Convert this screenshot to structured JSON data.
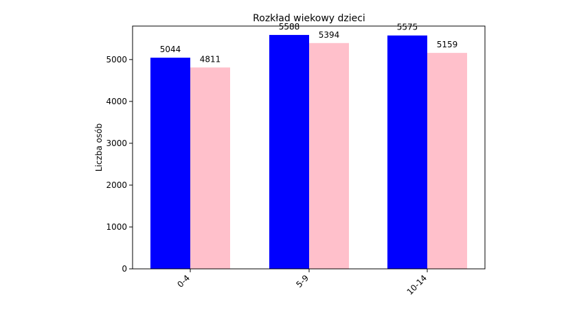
{
  "chart_data": {
    "type": "bar",
    "title": "Rozkład wiekowy dzieci",
    "xlabel": "",
    "ylabel": "Liczba osób",
    "categories": [
      "0-4",
      "5-9",
      "10-14"
    ],
    "series": [
      {
        "values": [
          5044,
          5588,
          5575
        ],
        "color": "#0000ff"
      },
      {
        "values": [
          4811,
          5394,
          5159
        ],
        "color": "#ffc0cb"
      }
    ],
    "ylim": [
      0,
      5800
    ],
    "yticks": [
      0,
      1000,
      2000,
      3000,
      4000,
      5000
    ],
    "grid": false,
    "xtick_rotation": 45
  }
}
